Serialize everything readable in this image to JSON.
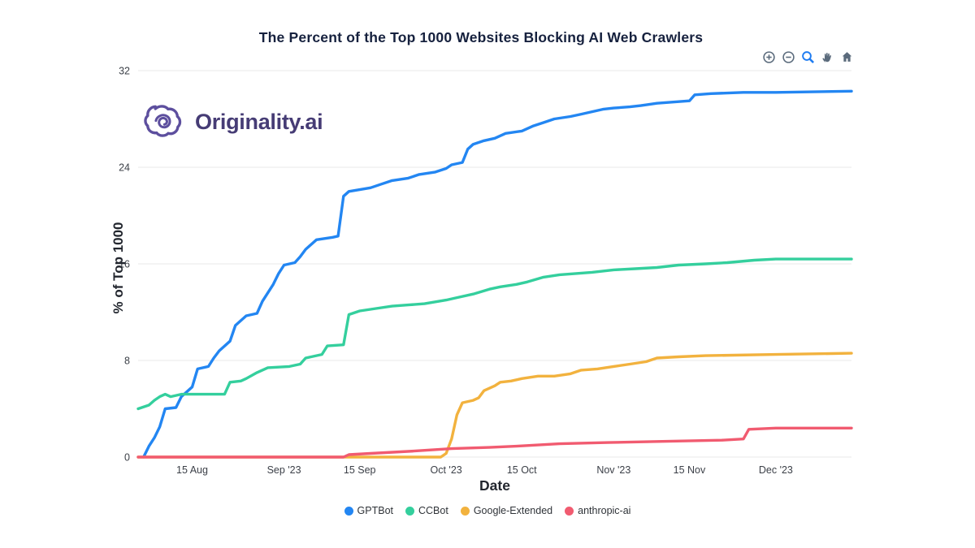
{
  "logo": {
    "text": "Originality.ai",
    "text_color": "#463c75",
    "icon_color": "#5d4f9e"
  },
  "modebar": {
    "buttons": [
      "zoom-in",
      "zoom-out",
      "box-zoom",
      "pan",
      "home"
    ],
    "icon_color": "#5b6b7c",
    "active_color": "#1f7cf1"
  },
  "chart_data": {
    "type": "line",
    "title": "The Percent of the Top 1000 Websites Blocking AI Web Crawlers",
    "xlabel": "Date",
    "ylabel": "% of Top 1000",
    "ylim": [
      0,
      32
    ],
    "yticks": [
      0,
      8,
      16,
      24,
      32
    ],
    "grid": "horizontal",
    "legend_position": "bottom",
    "x_domain": [
      "2023-08-05",
      "2023-12-15"
    ],
    "xticks": [
      {
        "date": "2023-08-15",
        "label": "15 Aug"
      },
      {
        "date": "2023-09-01",
        "label": "Sep '23"
      },
      {
        "date": "2023-09-15",
        "label": "15 Sep"
      },
      {
        "date": "2023-10-01",
        "label": "Oct '23"
      },
      {
        "date": "2023-10-15",
        "label": "15 Oct"
      },
      {
        "date": "2023-11-01",
        "label": "Nov '23"
      },
      {
        "date": "2023-11-15",
        "label": "15 Nov"
      },
      {
        "date": "2023-12-01",
        "label": "Dec '23"
      }
    ],
    "series": [
      {
        "name": "GPTBot",
        "color": "#2386f2",
        "points": [
          [
            "2023-08-06",
            0
          ],
          [
            "2023-08-07",
            0.9
          ],
          [
            "2023-08-08",
            1.6
          ],
          [
            "2023-08-09",
            2.5
          ],
          [
            "2023-08-10",
            4.0
          ],
          [
            "2023-08-12",
            4.1
          ],
          [
            "2023-08-13",
            5.0
          ],
          [
            "2023-08-15",
            5.8
          ],
          [
            "2023-08-16",
            7.3
          ],
          [
            "2023-08-18",
            7.5
          ],
          [
            "2023-08-19",
            8.2
          ],
          [
            "2023-08-20",
            8.8
          ],
          [
            "2023-08-22",
            9.6
          ],
          [
            "2023-08-23",
            10.9
          ],
          [
            "2023-08-25",
            11.7
          ],
          [
            "2023-08-27",
            11.9
          ],
          [
            "2023-08-28",
            12.9
          ],
          [
            "2023-08-30",
            14.3
          ],
          [
            "2023-08-31",
            15.2
          ],
          [
            "2023-09-01",
            15.9
          ],
          [
            "2023-09-03",
            16.1
          ],
          [
            "2023-09-04",
            16.6
          ],
          [
            "2023-09-05",
            17.2
          ],
          [
            "2023-09-07",
            18.0
          ],
          [
            "2023-09-10",
            18.2
          ],
          [
            "2023-09-11",
            18.3
          ],
          [
            "2023-09-12",
            21.6
          ],
          [
            "2023-09-13",
            22.0
          ],
          [
            "2023-09-17",
            22.3
          ],
          [
            "2023-09-19",
            22.6
          ],
          [
            "2023-09-21",
            22.9
          ],
          [
            "2023-09-24",
            23.1
          ],
          [
            "2023-09-26",
            23.4
          ],
          [
            "2023-09-29",
            23.6
          ],
          [
            "2023-10-01",
            23.9
          ],
          [
            "2023-10-02",
            24.2
          ],
          [
            "2023-10-04",
            24.4
          ],
          [
            "2023-10-05",
            25.5
          ],
          [
            "2023-10-06",
            25.9
          ],
          [
            "2023-10-08",
            26.2
          ],
          [
            "2023-10-10",
            26.4
          ],
          [
            "2023-10-12",
            26.8
          ],
          [
            "2023-10-15",
            27.0
          ],
          [
            "2023-10-17",
            27.4
          ],
          [
            "2023-10-19",
            27.7
          ],
          [
            "2023-10-21",
            28.0
          ],
          [
            "2023-10-24",
            28.2
          ],
          [
            "2023-10-26",
            28.4
          ],
          [
            "2023-10-28",
            28.6
          ],
          [
            "2023-10-30",
            28.8
          ],
          [
            "2023-11-01",
            28.9
          ],
          [
            "2023-11-04",
            29.0
          ],
          [
            "2023-11-06",
            29.1
          ],
          [
            "2023-11-09",
            29.3
          ],
          [
            "2023-11-12",
            29.4
          ],
          [
            "2023-11-15",
            29.5
          ],
          [
            "2023-11-16",
            30.0
          ],
          [
            "2023-11-19",
            30.1
          ],
          [
            "2023-11-25",
            30.2
          ],
          [
            "2023-12-01",
            30.2
          ],
          [
            "2023-12-15",
            30.3
          ]
        ]
      },
      {
        "name": "CCBot",
        "color": "#34cf9d",
        "points": [
          [
            "2023-08-05",
            4.0
          ],
          [
            "2023-08-07",
            4.3
          ],
          [
            "2023-08-08",
            4.7
          ],
          [
            "2023-08-09",
            5.0
          ],
          [
            "2023-08-10",
            5.2
          ],
          [
            "2023-08-11",
            5.0
          ],
          [
            "2023-08-13",
            5.2
          ],
          [
            "2023-08-21",
            5.2
          ],
          [
            "2023-08-22",
            6.2
          ],
          [
            "2023-08-24",
            6.3
          ],
          [
            "2023-08-25",
            6.5
          ],
          [
            "2023-08-27",
            7.0
          ],
          [
            "2023-08-29",
            7.4
          ],
          [
            "2023-09-02",
            7.5
          ],
          [
            "2023-09-04",
            7.7
          ],
          [
            "2023-09-05",
            8.2
          ],
          [
            "2023-09-08",
            8.5
          ],
          [
            "2023-09-09",
            9.2
          ],
          [
            "2023-09-12",
            9.3
          ],
          [
            "2023-09-13",
            11.8
          ],
          [
            "2023-09-15",
            12.1
          ],
          [
            "2023-09-18",
            12.3
          ],
          [
            "2023-09-21",
            12.5
          ],
          [
            "2023-09-24",
            12.6
          ],
          [
            "2023-09-27",
            12.7
          ],
          [
            "2023-10-01",
            13.0
          ],
          [
            "2023-10-03",
            13.2
          ],
          [
            "2023-10-06",
            13.5
          ],
          [
            "2023-10-09",
            13.9
          ],
          [
            "2023-10-11",
            14.1
          ],
          [
            "2023-10-14",
            14.3
          ],
          [
            "2023-10-16",
            14.5
          ],
          [
            "2023-10-19",
            14.9
          ],
          [
            "2023-10-22",
            15.1
          ],
          [
            "2023-10-25",
            15.2
          ],
          [
            "2023-10-28",
            15.3
          ],
          [
            "2023-11-01",
            15.5
          ],
          [
            "2023-11-05",
            15.6
          ],
          [
            "2023-11-09",
            15.7
          ],
          [
            "2023-11-13",
            15.9
          ],
          [
            "2023-11-18",
            16.0
          ],
          [
            "2023-11-22",
            16.1
          ],
          [
            "2023-11-27",
            16.3
          ],
          [
            "2023-12-01",
            16.4
          ],
          [
            "2023-12-15",
            16.4
          ]
        ]
      },
      {
        "name": "Google-Extended",
        "color": "#f2b23e",
        "points": [
          [
            "2023-08-05",
            0
          ],
          [
            "2023-09-30",
            0
          ],
          [
            "2023-10-01",
            0.3
          ],
          [
            "2023-10-02",
            1.5
          ],
          [
            "2023-10-03",
            3.5
          ],
          [
            "2023-10-04",
            4.5
          ],
          [
            "2023-10-06",
            4.7
          ],
          [
            "2023-10-07",
            4.9
          ],
          [
            "2023-10-08",
            5.5
          ],
          [
            "2023-10-10",
            5.9
          ],
          [
            "2023-10-11",
            6.2
          ],
          [
            "2023-10-13",
            6.3
          ],
          [
            "2023-10-15",
            6.5
          ],
          [
            "2023-10-18",
            6.7
          ],
          [
            "2023-10-21",
            6.7
          ],
          [
            "2023-10-24",
            6.9
          ],
          [
            "2023-10-26",
            7.2
          ],
          [
            "2023-10-29",
            7.3
          ],
          [
            "2023-11-01",
            7.5
          ],
          [
            "2023-11-04",
            7.7
          ],
          [
            "2023-11-07",
            7.9
          ],
          [
            "2023-11-09",
            8.2
          ],
          [
            "2023-11-13",
            8.3
          ],
          [
            "2023-11-18",
            8.4
          ],
          [
            "2023-12-01",
            8.5
          ],
          [
            "2023-12-15",
            8.6
          ]
        ]
      },
      {
        "name": "anthropic-ai",
        "color": "#f15b70",
        "points": [
          [
            "2023-08-05",
            0
          ],
          [
            "2023-09-12",
            0
          ],
          [
            "2023-09-13",
            0.2
          ],
          [
            "2023-09-17",
            0.3
          ],
          [
            "2023-09-25",
            0.5
          ],
          [
            "2023-10-02",
            0.7
          ],
          [
            "2023-10-09",
            0.8
          ],
          [
            "2023-10-14",
            0.9
          ],
          [
            "2023-10-22",
            1.1
          ],
          [
            "2023-10-31",
            1.2
          ],
          [
            "2023-11-10",
            1.3
          ],
          [
            "2023-11-21",
            1.4
          ],
          [
            "2023-11-25",
            1.5
          ],
          [
            "2023-11-26",
            2.3
          ],
          [
            "2023-12-01",
            2.4
          ],
          [
            "2023-12-15",
            2.4
          ]
        ]
      }
    ]
  }
}
